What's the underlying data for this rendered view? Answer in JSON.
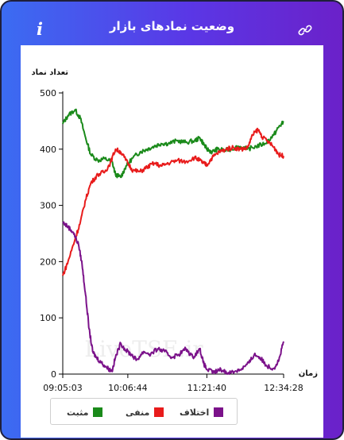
{
  "header": {
    "title": "وضعیت نمادهای بازار",
    "info_icon": "info-icon",
    "link_icon": "link-icon"
  },
  "watermark": "LiveTSE.ir",
  "chart_data": {
    "type": "line",
    "ylabel": "تعداد نماد",
    "xlabel": "زمان",
    "ylim": [
      0,
      500
    ],
    "yticks": [
      0,
      100,
      200,
      300,
      400,
      500
    ],
    "xticks": [
      "09:05:03",
      "10:06:44",
      "11:21:40",
      "12:34:28"
    ],
    "xrange_seconds": [
      0,
      12565
    ],
    "xtick_seconds": [
      0,
      3701,
      8197,
      12565
    ],
    "grid": false,
    "legend_position": "bottom-left",
    "series": [
      {
        "name": "مثبت",
        "color": "#1a8a1a",
        "points": [
          [
            0,
            445
          ],
          [
            300,
            460
          ],
          [
            700,
            470
          ],
          [
            1000,
            455
          ],
          [
            1300,
            420
          ],
          [
            1600,
            390
          ],
          [
            2000,
            380
          ],
          [
            2400,
            383
          ],
          [
            2800,
            378
          ],
          [
            3000,
            355
          ],
          [
            3300,
            350
          ],
          [
            3600,
            370
          ],
          [
            4000,
            385
          ],
          [
            4400,
            395
          ],
          [
            4800,
            400
          ],
          [
            5200,
            405
          ],
          [
            5600,
            410
          ],
          [
            6000,
            410
          ],
          [
            6500,
            415
          ],
          [
            7000,
            412
          ],
          [
            7500,
            415
          ],
          [
            7800,
            420
          ],
          [
            8000,
            410
          ],
          [
            8200,
            400
          ],
          [
            8500,
            395
          ],
          [
            8800,
            400
          ],
          [
            9200,
            398
          ],
          [
            9600,
            400
          ],
          [
            10000,
            405
          ],
          [
            10500,
            400
          ],
          [
            11000,
            405
          ],
          [
            11500,
            410
          ],
          [
            12000,
            425
          ],
          [
            12300,
            440
          ],
          [
            12565,
            448
          ]
        ]
      },
      {
        "name": "منفی",
        "color": "#e81b1b",
        "points": [
          [
            0,
            175
          ],
          [
            300,
            200
          ],
          [
            700,
            240
          ],
          [
            1000,
            270
          ],
          [
            1300,
            310
          ],
          [
            1600,
            340
          ],
          [
            2000,
            355
          ],
          [
            2400,
            360
          ],
          [
            2700,
            375
          ],
          [
            3000,
            400
          ],
          [
            3300,
            395
          ],
          [
            3700,
            375
          ],
          [
            4000,
            362
          ],
          [
            4400,
            360
          ],
          [
            4800,
            368
          ],
          [
            5200,
            375
          ],
          [
            5600,
            370
          ],
          [
            6000,
            375
          ],
          [
            6500,
            380
          ],
          [
            7000,
            378
          ],
          [
            7500,
            385
          ],
          [
            7800,
            380
          ],
          [
            8000,
            375
          ],
          [
            8200,
            372
          ],
          [
            8500,
            385
          ],
          [
            8900,
            395
          ],
          [
            9300,
            400
          ],
          [
            9700,
            403
          ],
          [
            10100,
            400
          ],
          [
            10500,
            402
          ],
          [
            10800,
            425
          ],
          [
            11100,
            435
          ],
          [
            11400,
            420
          ],
          [
            11800,
            410
          ],
          [
            12100,
            400
          ],
          [
            12300,
            390
          ],
          [
            12565,
            388
          ]
        ]
      },
      {
        "name": "اختلاف",
        "color": "#7b128a",
        "points": [
          [
            0,
            270
          ],
          [
            300,
            262
          ],
          [
            600,
            252
          ],
          [
            900,
            230
          ],
          [
            1100,
            195
          ],
          [
            1300,
            140
          ],
          [
            1500,
            80
          ],
          [
            1700,
            40
          ],
          [
            1900,
            30
          ],
          [
            2200,
            20
          ],
          [
            2500,
            12
          ],
          [
            2800,
            5
          ],
          [
            3000,
            30
          ],
          [
            3300,
            55
          ],
          [
            3600,
            42
          ],
          [
            3900,
            35
          ],
          [
            4200,
            25
          ],
          [
            4600,
            40
          ],
          [
            5000,
            35
          ],
          [
            5400,
            45
          ],
          [
            5800,
            40
          ],
          [
            6200,
            30
          ],
          [
            6600,
            35
          ],
          [
            7000,
            45
          ],
          [
            7400,
            30
          ],
          [
            7800,
            45
          ],
          [
            8000,
            20
          ],
          [
            8200,
            8
          ],
          [
            8600,
            3
          ],
          [
            9000,
            8
          ],
          [
            9400,
            2
          ],
          [
            9800,
            5
          ],
          [
            10200,
            10
          ],
          [
            10600,
            20
          ],
          [
            10900,
            35
          ],
          [
            11200,
            30
          ],
          [
            11600,
            15
          ],
          [
            12000,
            10
          ],
          [
            12300,
            25
          ],
          [
            12565,
            58
          ]
        ]
      }
    ]
  }
}
